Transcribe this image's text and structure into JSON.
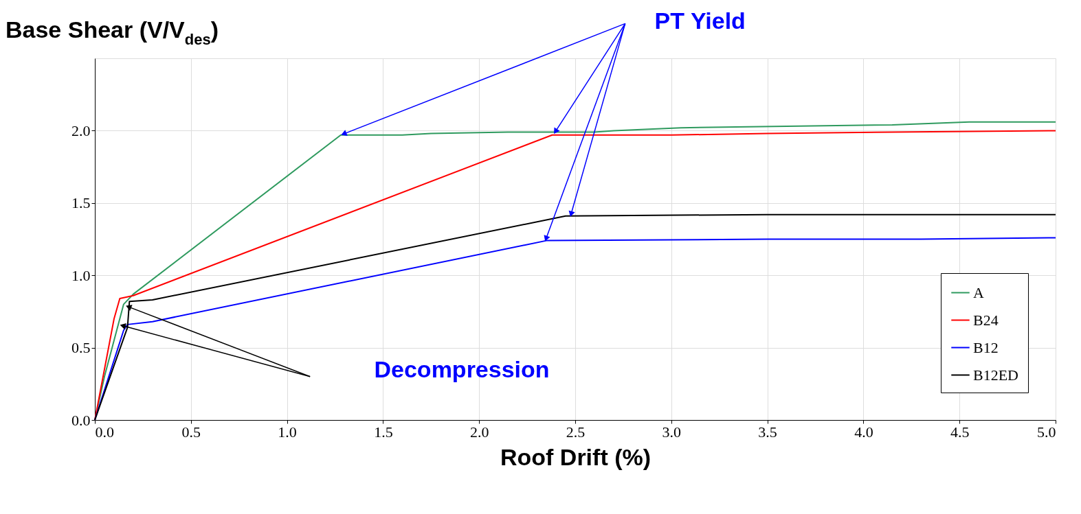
{
  "chart_data": {
    "type": "line",
    "xlabel": "Roof Drift (%)",
    "ylabel": "Base Shear (V/V$_{des}$)",
    "xlim": [
      0,
      5
    ],
    "ylim": [
      0,
      2.5
    ],
    "xticks": [
      {
        "value": 0,
        "label": "0.0"
      },
      0.5,
      {
        "value": 1,
        "label": "1.0"
      },
      1.5,
      {
        "value": 2,
        "label": "2.0"
      },
      2.5,
      {
        "value": 3,
        "label": "3.0"
      },
      3.5,
      {
        "value": 4,
        "label": "4.0"
      },
      4.5,
      {
        "value": 5,
        "label": "5.0"
      }
    ],
    "yticks": [
      {
        "value": 0,
        "label": "0.0"
      },
      0.5,
      {
        "value": 1,
        "label": "1.0"
      },
      1.5,
      {
        "value": 2,
        "label": "2.0"
      }
    ],
    "grid": true,
    "legend": "bottom right",
    "marker": "none",
    "line_style": "solid",
    "annotations": [
      {
        "text": "PT Yield",
        "x": 1.3,
        "y": 1.98
      },
      "Decompression"
    ],
    "series": [
      {
        "name": "A",
        "color": "#2e9a5e",
        "x": [
          0,
          0.05,
          0.1,
          0.15,
          0.2,
          1.28,
          1.6,
          1.75,
          2.15,
          2.6,
          2.7,
          3.05,
          3.6,
          4.15,
          4.55,
          5.0
        ],
        "values": [
          0,
          0.3,
          0.55,
          0.8,
          0.87,
          1.97,
          1.97,
          1.98,
          1.99,
          1.99,
          2.0,
          2.02,
          2.03,
          2.04,
          2.06,
          2.06
        ]
      },
      {
        "name": "B24",
        "color": "#ff0000",
        "x": [
          0,
          0.1,
          0.13,
          0.2,
          2.38,
          3.0,
          3.5,
          4.15,
          5.0
        ],
        "values": [
          0,
          0.7,
          0.84,
          0.86,
          1.97,
          1.97,
          1.98,
          1.99,
          2.0
        ]
      },
      {
        "name": "B12",
        "color": "#0000ff",
        "x": [
          0,
          0.15,
          0.17,
          0.3,
          2.35,
          3.5,
          4.3,
          5.0
        ],
        "values": [
          0,
          0.62,
          0.66,
          0.68,
          1.24,
          1.25,
          1.25,
          1.26
        ]
      },
      {
        "name": "B12ED",
        "color": "#000000",
        "x": [
          0,
          0.17,
          0.18,
          0.3,
          2.45,
          3.5,
          5.0
        ],
        "values": [
          0,
          0.64,
          0.82,
          0.83,
          1.41,
          1.42,
          1.42
        ]
      }
    ]
  }
}
